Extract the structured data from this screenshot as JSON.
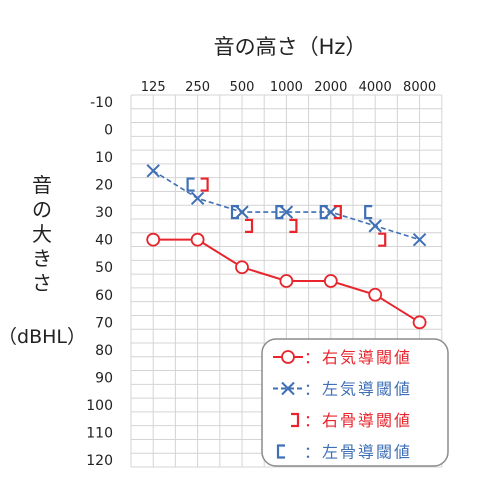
{
  "chart_data": {
    "type": "line",
    "title": "音の高さ（Hz）",
    "ylabel_lines": [
      "音",
      "の",
      "大",
      "き",
      "さ"
    ],
    "yunit": "（dBHL）",
    "x_ticks": [
      "125",
      "250",
      "500",
      "1000",
      "2000",
      "4000",
      "8000"
    ],
    "y_ticks": [
      "-10",
      "0",
      "10",
      "20",
      "30",
      "40",
      "50",
      "60",
      "70",
      "80",
      "90",
      "100",
      "110",
      "120"
    ],
    "ylim": [
      -10,
      120
    ],
    "y_inverted": true,
    "grid": true,
    "legend_placement": "bottom-right",
    "series": [
      {
        "name": "：右気導閾値",
        "marker": "circle",
        "line": "solid",
        "color": "#e8242d",
        "x": [
          "125",
          "250",
          "500",
          "1000",
          "2000",
          "4000",
          "8000"
        ],
        "values": [
          40,
          40,
          50,
          55,
          55,
          60,
          70
        ]
      },
      {
        "name": "：左気導閾値",
        "marker": "x",
        "line": "dashed",
        "color": "#3f6fb5",
        "x": [
          "125",
          "250",
          "500",
          "1000",
          "2000",
          "4000",
          "8000"
        ],
        "values": [
          15,
          25,
          30,
          30,
          30,
          35,
          40
        ]
      },
      {
        "name": "：右骨導閾値",
        "marker": "bracket-right",
        "line": "none",
        "color": "#e8242d",
        "x": [
          "250",
          "500",
          "1000",
          "2000",
          "4000"
        ],
        "values": [
          20,
          35,
          35,
          30,
          40
        ]
      },
      {
        "name": "：左骨導閾値",
        "marker": "bracket-left",
        "line": "none",
        "color": "#3f6fb5",
        "x": [
          "250",
          "500",
          "1000",
          "2000",
          "4000"
        ],
        "values": [
          20,
          30,
          30,
          30,
          30
        ]
      }
    ]
  }
}
